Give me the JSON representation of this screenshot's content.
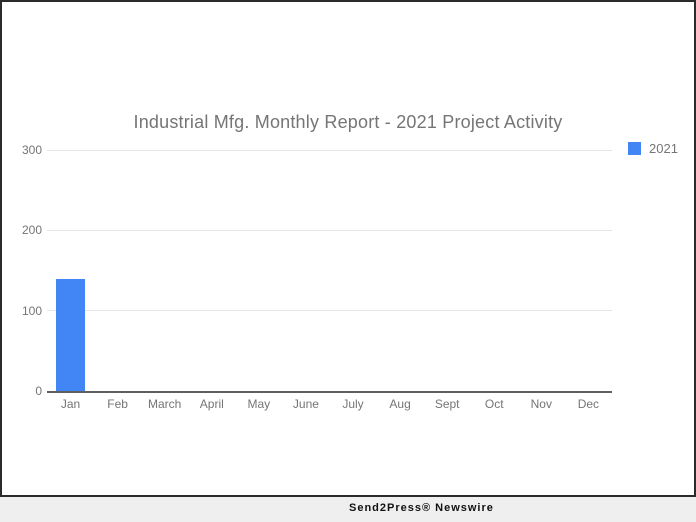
{
  "chart_data": {
    "type": "bar",
    "title": "Industrial Mfg. Monthly Report - 2021 Project Activity",
    "categories": [
      "Jan",
      "Feb",
      "March",
      "April",
      "May",
      "June",
      "July",
      "Aug",
      "Sept",
      "Oct",
      "Nov",
      "Dec"
    ],
    "series": [
      {
        "name": "2021",
        "color": "#4285f4",
        "values": [
          140,
          0,
          0,
          0,
          0,
          0,
          0,
          0,
          0,
          0,
          0,
          0
        ]
      }
    ],
    "xlabel": "",
    "ylabel": "",
    "ylim": [
      0,
      300
    ],
    "yticks": [
      0,
      100,
      200,
      300
    ],
    "grid": "horizontal-only",
    "legend_position": "top-right"
  },
  "legend": {
    "entry_label": "2021"
  },
  "footer": {
    "brand": "Send2Press® Newswire"
  },
  "colors": {
    "bar": "#4285f4",
    "title_text": "#757575",
    "axis_text": "#757575",
    "gridline": "#e6e6e6",
    "baseline": "#5f5f5f",
    "frame_border": "#2b2b2b",
    "footer_bg": "#efefef",
    "footer_text": "#111111",
    "background": "#ffffff"
  }
}
